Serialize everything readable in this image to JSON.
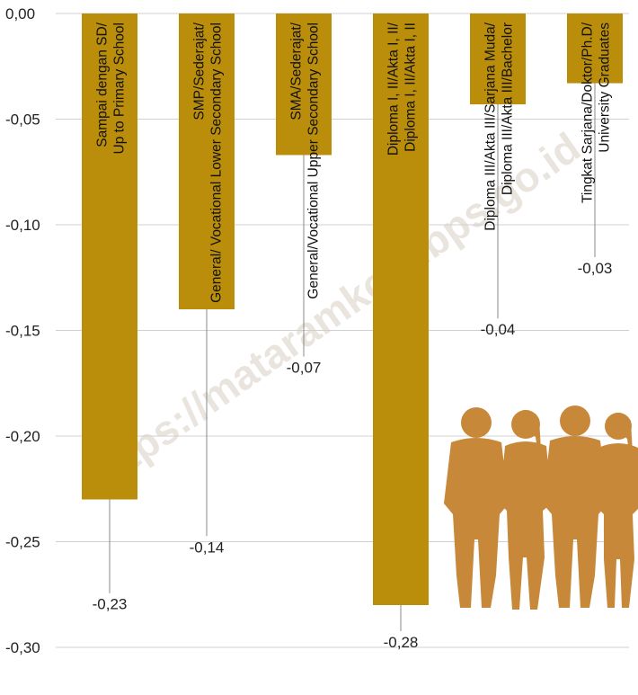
{
  "colors": {
    "bar": "#BA8E0A",
    "grid": "#d0d0d0",
    "leader": "#888888",
    "people": "#C8883A"
  },
  "watermark": "https://mataramkota.bps.go.id",
  "chart_data": {
    "type": "bar",
    "title": "",
    "xlabel": "",
    "ylabel": "",
    "ylim": [
      -0.3,
      0.0
    ],
    "yticks": [
      0.0,
      -0.05,
      -0.1,
      -0.15,
      -0.2,
      -0.25,
      -0.3
    ],
    "ytick_labels": [
      "0,00",
      "-0,05",
      "-0,10",
      "-0,15",
      "-0,20",
      "-0,25",
      "-0,30"
    ],
    "grid": true,
    "legend": "none",
    "categories": [
      [
        "Sampai dengan SD/",
        "Up to Primary School"
      ],
      [
        "SMP/Sederajat/",
        "General/ Vocational Lower Secondary School"
      ],
      [
        "SMA/Sederajat/",
        "General/Vocational Upper Secondary School"
      ],
      [
        "Diploma I, II/Akta I, II/",
        "Diploma I, II/Akta I, II"
      ],
      [
        "Diploma III/Akta III/Sarjana Muda/",
        "Diploma III/Akta III/Bachelor"
      ],
      [
        "Tingkat Sarjana/Doktor/Ph.D/",
        "University Graduates"
      ]
    ],
    "values": [
      -0.23,
      -0.14,
      -0.067,
      -0.28,
      -0.043,
      -0.033
    ],
    "value_labels": [
      "-0,23",
      "-0,14",
      "-0,07",
      "-0,28",
      "-0,04",
      "-0,03"
    ],
    "label_values": [
      -0.282,
      -0.255,
      -0.17,
      -0.3,
      -0.152,
      -0.123
    ]
  }
}
